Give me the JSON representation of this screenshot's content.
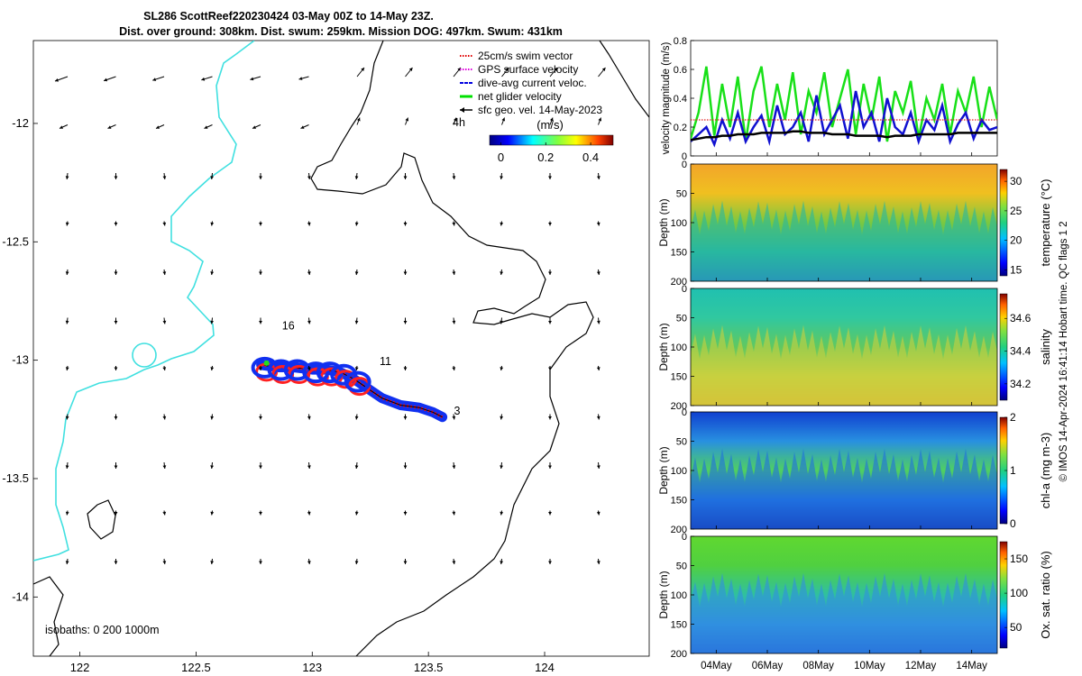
{
  "title": {
    "line1": "SL286 ScottReef220230424 03-May 00Z to 14-May 23Z.",
    "line2": "Dist. over ground: 308km. Dist. swum: 259km. Mission DOG: 497km. Swum: 431km"
  },
  "map": {
    "xlim": [
      121.8,
      124.45
    ],
    "ylim": [
      -14.25,
      -11.65
    ],
    "xticks": [
      122,
      122.5,
      123,
      123.5,
      124
    ],
    "xtick_labels": [
      "122",
      "122.5",
      "123",
      "123.5",
      "124"
    ],
    "yticks": [
      -12,
      -12.5,
      -13,
      -13.5,
      -14
    ],
    "ytick_labels": [
      "-12",
      "-12.5",
      "-13",
      "-13.5",
      "-14"
    ],
    "isobath_label": "isobaths: 0   200  1000m",
    "legend": [
      {
        "label": "25cm/s swim vector",
        "color": "#e00000",
        "style": "dotted"
      },
      {
        "label": "GPS surface velocity",
        "color": "#e000e0",
        "style": "dotted"
      },
      {
        "label": "dive-avg current veloc.",
        "color": "#0000e0",
        "style": "dashed"
      },
      {
        "label": "net glider velocity",
        "color": "#00e000",
        "style": "solid"
      },
      {
        "label": "sfc geo. vel. 14-May-2023",
        "color": "#000000",
        "style": "arrow"
      }
    ],
    "legend_extra": "4h",
    "colorbar": {
      "unit": "(m/s)",
      "ticks": [
        0,
        0.2,
        0.4
      ],
      "tick_labels": [
        "0",
        "0.2",
        "0.4"
      ],
      "range": [
        -0.05,
        0.5
      ]
    },
    "labels": [
      {
        "text": "16",
        "lon": 122.87,
        "lat": -12.87
      },
      {
        "text": "11",
        "lon": 123.29,
        "lat": -13.02
      },
      {
        "text": "3",
        "lon": 123.61,
        "lat": -13.23
      }
    ],
    "track": [
      [
        122.78,
        -13.02
      ],
      [
        122.85,
        -13.03
      ],
      [
        122.92,
        -13.03
      ],
      [
        123.0,
        -13.04
      ],
      [
        123.06,
        -13.04
      ],
      [
        123.12,
        -13.05
      ],
      [
        123.18,
        -13.08
      ],
      [
        123.24,
        -13.12
      ],
      [
        123.3,
        -13.16
      ],
      [
        123.38,
        -13.19
      ],
      [
        123.46,
        -13.2
      ],
      [
        123.52,
        -13.22
      ],
      [
        123.56,
        -13.24
      ]
    ]
  },
  "velocity_panel": {
    "ylabel": "velocity magnitude (m/s)",
    "ylim": [
      0,
      0.8
    ],
    "yticks": [
      0,
      0.2,
      0.4,
      0.6,
      0.8
    ],
    "ytick_labels": [
      "0",
      "0.2",
      "0.4",
      "0.6",
      "0.8"
    ],
    "series": [
      {
        "color": "#18e018",
        "values": [
          0.12,
          0.3,
          0.62,
          0.14,
          0.5,
          0.2,
          0.55,
          0.1,
          0.45,
          0.62,
          0.2,
          0.5,
          0.25,
          0.58,
          0.15,
          0.45,
          0.3,
          0.58,
          0.2,
          0.4,
          0.6,
          0.15,
          0.5,
          0.25,
          0.55,
          0.1,
          0.45,
          0.3,
          0.52,
          0.12,
          0.4,
          0.25,
          0.5,
          0.15,
          0.45,
          0.3,
          0.55,
          0.2,
          0.48,
          0.25
        ]
      },
      {
        "color": "#1010d0",
        "values": [
          0.1,
          0.15,
          0.2,
          0.08,
          0.25,
          0.12,
          0.3,
          0.1,
          0.2,
          0.28,
          0.1,
          0.35,
          0.15,
          0.2,
          0.3,
          0.1,
          0.42,
          0.15,
          0.25,
          0.35,
          0.12,
          0.45,
          0.2,
          0.3,
          0.1,
          0.4,
          0.2,
          0.15,
          0.3,
          0.1,
          0.25,
          0.18,
          0.35,
          0.1,
          0.22,
          0.3,
          0.12,
          0.25,
          0.18,
          0.2
        ]
      },
      {
        "color": "#000000",
        "values": [
          0.11,
          0.12,
          0.13,
          0.13,
          0.14,
          0.14,
          0.15,
          0.15,
          0.15,
          0.16,
          0.16,
          0.16,
          0.16,
          0.17,
          0.17,
          0.16,
          0.16,
          0.16,
          0.15,
          0.15,
          0.15,
          0.14,
          0.14,
          0.14,
          0.14,
          0.13,
          0.14,
          0.14,
          0.14,
          0.15,
          0.15,
          0.15,
          0.15,
          0.15,
          0.16,
          0.16,
          0.16,
          0.16,
          0.16,
          0.16
        ]
      },
      {
        "color": "#e02020",
        "values": [
          0.25,
          0.25,
          0.25,
          0.25,
          0.25,
          0.25,
          0.25,
          0.25,
          0.25,
          0.25,
          0.25,
          0.25,
          0.25,
          0.25,
          0.25,
          0.25,
          0.25,
          0.25,
          0.25,
          0.25,
          0.25,
          0.25,
          0.25,
          0.25,
          0.25,
          0.25,
          0.25,
          0.25,
          0.25,
          0.25,
          0.25,
          0.25,
          0.25,
          0.25,
          0.25,
          0.25,
          0.25,
          0.25,
          0.25,
          0.25
        ]
      }
    ]
  },
  "depth_panels": [
    {
      "ylabel": "Depth (m)",
      "cbar_label": "temperature (°C)",
      "cbar_ticks": [
        15,
        20,
        25,
        30
      ],
      "cbar_tick_labels": [
        "15",
        "20",
        "25",
        "30"
      ],
      "cbar_range": [
        14,
        32
      ],
      "colors": [
        "#f2a52a",
        "#f0c020",
        "#7ac840",
        "#28b8a0",
        "#2868d8"
      ]
    },
    {
      "ylabel": "Depth (m)",
      "cbar_label": "salinity",
      "cbar_ticks": [
        34.2,
        34.4,
        34.6
      ],
      "cbar_tick_labels": [
        "34.2",
        "34.4",
        "34.6"
      ],
      "cbar_range": [
        34.1,
        34.75
      ],
      "colors": [
        "#20c0b0",
        "#30c8a0",
        "#60c860",
        "#c8d040",
        "#e8b030"
      ]
    },
    {
      "ylabel": "Depth (m)",
      "cbar_label": "chl-a (mg m-3)",
      "cbar_ticks": [
        0,
        1,
        2
      ],
      "cbar_tick_labels": [
        "0",
        "1",
        "2"
      ],
      "cbar_range": [
        0,
        2
      ],
      "colors": [
        "#1040d0",
        "#2890e0",
        "#50d060",
        "#2070e0",
        "#1018a0"
      ]
    },
    {
      "ylabel": "Depth (m)",
      "cbar_label": "Ox. sat. ratio (%)",
      "cbar_ticks": [
        50,
        100,
        150
      ],
      "cbar_tick_labels": [
        "50",
        "100",
        "150"
      ],
      "cbar_range": [
        20,
        175
      ],
      "colors": [
        "#60d830",
        "#50d040",
        "#30c0a0",
        "#3090e0",
        "#2050d8"
      ]
    }
  ],
  "depth_axis": {
    "ylim": [
      0,
      200
    ],
    "yticks": [
      0,
      50,
      100,
      150,
      200
    ],
    "ytick_labels": [
      "0",
      "50",
      "100",
      "150",
      "200"
    ]
  },
  "time_axis": {
    "xlim": [
      0,
      12
    ],
    "xticks": [
      1,
      3,
      5,
      7,
      9,
      11
    ],
    "xtick_labels": [
      "04May",
      "06May",
      "08May",
      "10May",
      "12May",
      "14May"
    ]
  },
  "credit": "© IMOS 14-Apr-2024 16:41:14 Hobart time. QC flags 1  2"
}
